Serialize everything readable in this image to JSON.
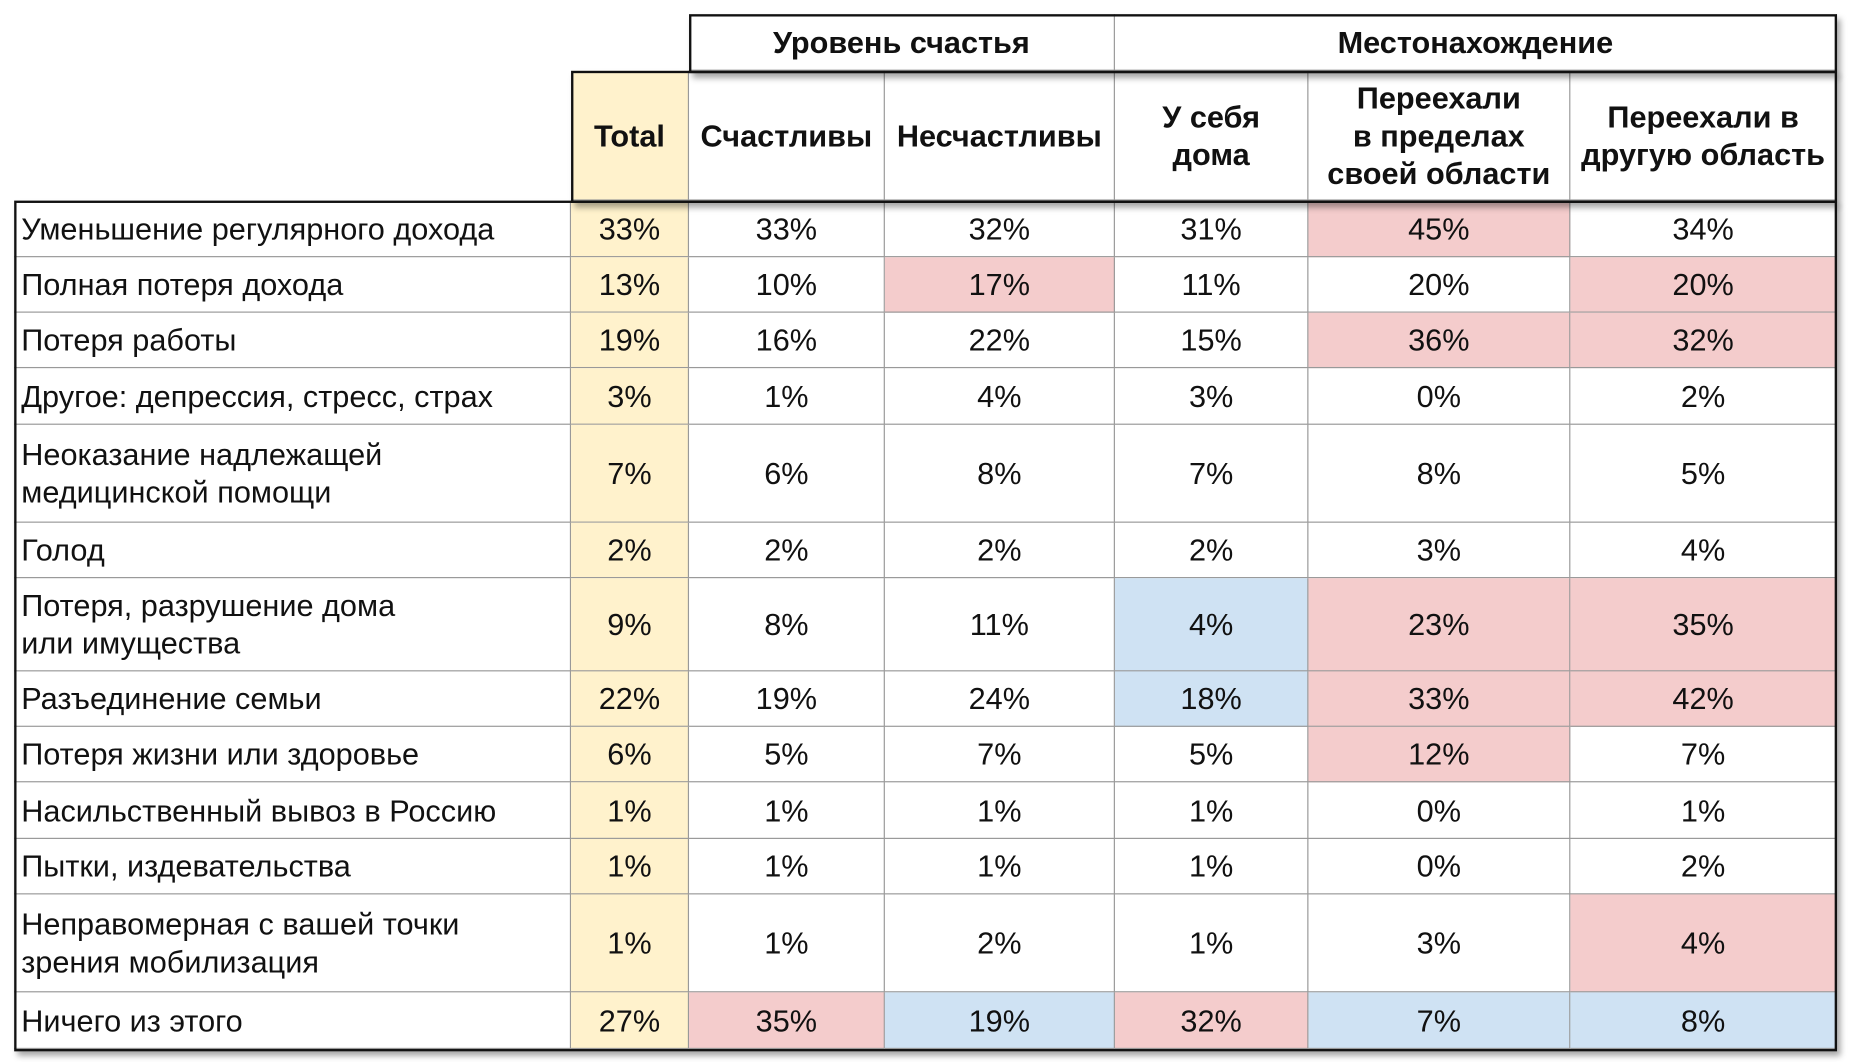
{
  "table": {
    "groups": [
      "Уровень счастья",
      "Местонахождение"
    ],
    "total_header": "Total",
    "columns": [
      "Счастливы",
      "Несчастливы",
      "У себя\nдома",
      "Переехали\nв пределах\nсвоей области",
      "Переехали в\nдругую область"
    ],
    "total_color": "#fff2cc",
    "rows": [
      {
        "label": "Уменьшение регулярного дохода",
        "total": "33%",
        "cells": [
          "33%",
          "32%",
          "31%",
          "45%",
          "34%"
        ],
        "fills": [
          null,
          null,
          null,
          "#f4cccc",
          null
        ]
      },
      {
        "label": "Полная потеря дохода",
        "total": "13%",
        "cells": [
          "10%",
          "17%",
          "11%",
          "20%",
          "20%"
        ],
        "fills": [
          null,
          "#f4cccc",
          null,
          null,
          "#f4cccc"
        ]
      },
      {
        "label": "Потеря работы",
        "total": "19%",
        "cells": [
          "16%",
          "22%",
          "15%",
          "36%",
          "32%"
        ],
        "fills": [
          null,
          null,
          null,
          "#f4cccc",
          "#f4cccc"
        ]
      },
      {
        "label": "Другое: депрессия, стресс, страх",
        "total": "3%",
        "cells": [
          "1%",
          "4%",
          "3%",
          "0%",
          "2%"
        ],
        "fills": [
          null,
          null,
          null,
          null,
          null
        ]
      },
      {
        "label": "Неоказание надлежащей\nмедицинской помощи",
        "total": "7%",
        "cells": [
          "6%",
          "8%",
          "7%",
          "8%",
          "5%"
        ],
        "fills": [
          null,
          null,
          null,
          null,
          null
        ]
      },
      {
        "label": "Голод",
        "total": "2%",
        "cells": [
          "2%",
          "2%",
          "2%",
          "3%",
          "4%"
        ],
        "fills": [
          null,
          null,
          null,
          null,
          null
        ]
      },
      {
        "label": "Потеря, разрушение дома\nили имущества",
        "total": "9%",
        "cells": [
          "8%",
          "11%",
          "4%",
          "23%",
          "35%"
        ],
        "fills": [
          null,
          null,
          "#cfe2f3",
          "#f4cccc",
          "#f4cccc"
        ]
      },
      {
        "label": "Разъединение семьи",
        "total": "22%",
        "cells": [
          "19%",
          "24%",
          "18%",
          "33%",
          "42%"
        ],
        "fills": [
          null,
          null,
          "#cfe2f3",
          "#f4cccc",
          "#f4cccc"
        ]
      },
      {
        "label": "Потеря жизни или здоровье",
        "total": "6%",
        "cells": [
          "5%",
          "7%",
          "5%",
          "12%",
          "7%"
        ],
        "fills": [
          null,
          null,
          null,
          "#f4cccc",
          null
        ]
      },
      {
        "label": "Насильственный вывоз в Россию",
        "total": "1%",
        "cells": [
          "1%",
          "1%",
          "1%",
          "0%",
          "1%"
        ],
        "fills": [
          null,
          null,
          null,
          null,
          null
        ]
      },
      {
        "label": "Пытки, издевательства",
        "total": "1%",
        "cells": [
          "1%",
          "1%",
          "1%",
          "0%",
          "2%"
        ],
        "fills": [
          null,
          null,
          null,
          null,
          null
        ]
      },
      {
        "label": "Неправомерная с вашей точки\nзрения мобилизация",
        "total": "1%",
        "cells": [
          "1%",
          "2%",
          "1%",
          "3%",
          "4%"
        ],
        "fills": [
          null,
          null,
          null,
          null,
          "#f4cccc"
        ]
      },
      {
        "label": "Ничего из этого",
        "total": "27%",
        "cells": [
          "35%",
          "19%",
          "32%",
          "7%",
          "8%"
        ],
        "fills": [
          "#f4cccc",
          "#cfe2f3",
          "#f4cccc",
          "#cfe2f3",
          "#cfe2f3"
        ]
      }
    ]
  }
}
